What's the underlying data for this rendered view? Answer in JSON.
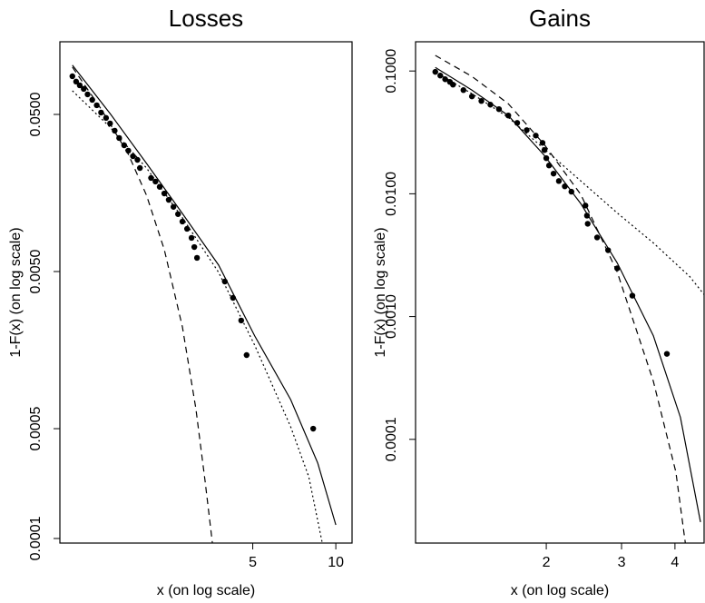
{
  "chart_data": [
    {
      "type": "scatter",
      "title": "Losses",
      "x_label": "x (on log scale)",
      "y_label": "1-F(x) (on log scale)",
      "xscale": "log",
      "yscale": "log",
      "xlim": [
        1.0,
        11.45
      ],
      "ylim": [
        9.35e-05,
        0.145
      ],
      "xticks": [
        5,
        10
      ],
      "yticks": [
        {
          "value": 0.0001,
          "label": "0.0001"
        },
        {
          "value": 0.0005,
          "label": "0.0005"
        },
        {
          "value": 0.005,
          "label": "0.0050"
        },
        {
          "value": 0.05,
          "label": "0.0500"
        }
      ],
      "series": [
        {
          "style": "points",
          "color": "#000000",
          "x": [
            1.11,
            1.145,
            1.18,
            1.22,
            1.26,
            1.31,
            1.36,
            1.41,
            1.47,
            1.52,
            1.58,
            1.64,
            1.71,
            1.77,
            1.84,
            1.91,
            1.95,
            2.14,
            2.22,
            2.3,
            2.39,
            2.48,
            2.58,
            2.68,
            2.78,
            2.89,
            3.0,
            3.07,
            3.14,
            3.96,
            4.24,
            4.54,
            4.75,
            8.28
          ],
          "values": [
            0.0875,
            0.0809,
            0.0766,
            0.0727,
            0.0671,
            0.0619,
            0.0572,
            0.0514,
            0.0475,
            0.0438,
            0.0394,
            0.0354,
            0.0318,
            0.0294,
            0.0271,
            0.0257,
            0.0228,
            0.0197,
            0.0187,
            0.0173,
            0.0157,
            0.0143,
            0.0129,
            0.0116,
            0.0104,
            0.00935,
            0.00819,
            0.00716,
            0.00611,
            0.00432,
            0.0034,
            0.00244,
            0.00147,
            0.0005
          ]
        },
        {
          "style": "solid",
          "color": "#000000",
          "x": [
            1.11,
            1.52,
            2.06,
            2.78,
            3.76,
            5.08,
            6.86,
            8.6,
            10
          ],
          "values": [
            0.103,
            0.0507,
            0.0244,
            0.0117,
            0.0055,
            0.00195,
            0.000766,
            0.000302,
            0.000122
          ]
        },
        {
          "style": "dashed",
          "color": "#000000",
          "x": [
            1.11,
            1.41,
            1.77,
            2.06,
            2.39,
            2.78,
            3.11,
            3.36,
            3.57
          ],
          "values": [
            0.1,
            0.0542,
            0.0279,
            0.0153,
            0.00689,
            0.00222,
            0.000671,
            0.000231,
            9.36e-05
          ]
        },
        {
          "style": "dotted",
          "color": "#000000",
          "x": [
            1.11,
            1.52,
            2.06,
            2.78,
            3.76,
            5.08,
            6.86,
            7.98,
            8.93
          ],
          "values": [
            0.0707,
            0.0415,
            0.0228,
            0.011,
            0.00494,
            0.0017,
            0.000514,
            0.000247,
            9.36e-05
          ]
        }
      ]
    },
    {
      "type": "scatter",
      "title": "Gains",
      "x_label": "x (on log scale)",
      "y_label": "1-F(x) (on log scale)",
      "xscale": "log",
      "yscale": "log",
      "xlim": [
        0.989,
        4.68
      ],
      "ylim": [
        1.43e-05,
        0.173
      ],
      "xticks": [
        2,
        3,
        4
      ],
      "yticks": [
        {
          "value": 0.0001,
          "label": "0.0001"
        },
        {
          "value": 0.001,
          "label": "0.0010"
        },
        {
          "value": 0.01,
          "label": "0.0100"
        },
        {
          "value": 0.1,
          "label": "0.1000"
        }
      ],
      "series": [
        {
          "style": "points",
          "color": "#000000",
          "x": [
            1.1,
            1.13,
            1.16,
            1.19,
            1.21,
            1.28,
            1.34,
            1.41,
            1.48,
            1.55,
            1.63,
            1.71,
            1.8,
            1.89,
            1.96,
            1.98,
            2.0,
            2.03,
            2.08,
            2.14,
            2.21,
            2.29,
            2.47,
            2.49,
            2.5,
            2.63,
            2.79,
            2.93,
            3.18,
            3.83
          ],
          "values": [
            0.0984,
            0.0918,
            0.0857,
            0.0815,
            0.0774,
            0.0699,
            0.0621,
            0.057,
            0.0532,
            0.0489,
            0.0434,
            0.0378,
            0.033,
            0.0298,
            0.026,
            0.0227,
            0.0195,
            0.017,
            0.0146,
            0.0127,
            0.0115,
            0.0104,
            0.00802,
            0.00664,
            0.0057,
            0.00441,
            0.00347,
            0.00247,
            0.00148,
            0.000497
          ]
        },
        {
          "style": "solid",
          "color": "#000000",
          "x": [
            1.1,
            1.34,
            1.63,
            1.98,
            2.41,
            2.93,
            3.56,
            4.12,
            4.59
          ],
          "values": [
            0.107,
            0.0699,
            0.0434,
            0.0205,
            0.00829,
            0.00274,
            0.000699,
            0.000151,
            2.12e-05
          ]
        },
        {
          "style": "dashed",
          "color": "#000000",
          "x": [
            1.1,
            1.34,
            1.63,
            1.98,
            2.41,
            2.93,
            3.56,
            4.02,
            4.23
          ],
          "values": [
            0.134,
            0.0903,
            0.0541,
            0.0251,
            0.00984,
            0.00231,
            0.000298,
            5.41e-05,
            1.43e-05
          ]
        },
        {
          "style": "dotted",
          "color": "#000000",
          "x": [
            1.1,
            1.34,
            1.63,
            1.98,
            2.41,
            2.93,
            3.56,
            4.33,
            4.68
          ],
          "values": [
            0.0984,
            0.0653,
            0.0419,
            0.0231,
            0.0127,
            0.00699,
            0.00398,
            0.00212,
            0.00151
          ]
        }
      ]
    }
  ]
}
